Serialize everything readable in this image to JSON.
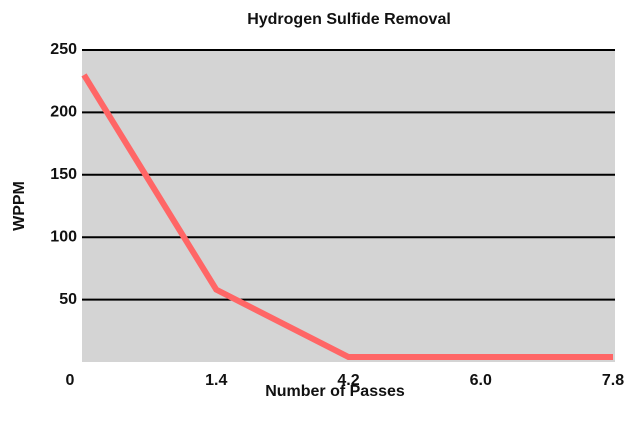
{
  "chart_data": {
    "type": "line",
    "title": "Hydrogen Sulfide Removal",
    "xlabel": "Number of Passes",
    "ylabel": "WPPM",
    "categories": [
      "0",
      "1.4",
      "4.2",
      "6.0",
      "7.8"
    ],
    "values": [
      230,
      58,
      4,
      4,
      4
    ],
    "color": "#ff6666",
    "ylim": [
      0,
      250
    ],
    "yticks": [
      50,
      100,
      150,
      200,
      250
    ],
    "grid": true
  }
}
